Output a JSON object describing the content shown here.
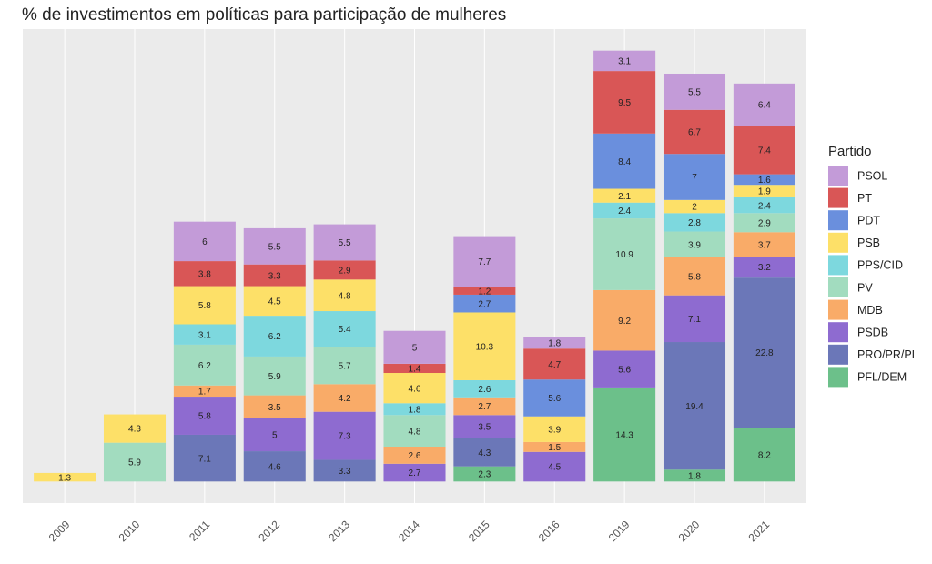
{
  "chart_data": {
    "type": "stacked_bar",
    "title": "% de investimentos em políticas para participação de mulheres",
    "categories": [
      "2009",
      "2010",
      "2011",
      "2012",
      "2013",
      "2014",
      "2015",
      "2016",
      "2019",
      "2020",
      "2021"
    ],
    "legend_title": "Partido",
    "legend_position": "right",
    "grid": true,
    "series": [
      {
        "name": "PSOL",
        "color": "#c39bd8",
        "values": [
          null,
          null,
          6,
          5.5,
          5.5,
          5,
          7.7,
          1.8,
          3.1,
          5.5,
          6.4
        ]
      },
      {
        "name": "PT",
        "color": "#d95656",
        "values": [
          null,
          null,
          3.8,
          3.3,
          2.9,
          1.4,
          1.2,
          4.7,
          9.5,
          6.7,
          7.4
        ]
      },
      {
        "name": "PDT",
        "color": "#6a8fdd",
        "values": [
          null,
          null,
          null,
          null,
          null,
          null,
          2.7,
          5.6,
          8.4,
          7,
          1.6
        ]
      },
      {
        "name": "PSB",
        "color": "#fde068",
        "values": [
          1.3,
          4.3,
          5.8,
          4.5,
          4.8,
          4.6,
          10.3,
          3.9,
          2.1,
          2,
          1.9
        ]
      },
      {
        "name": "PPS/CID",
        "color": "#7dd8de",
        "values": [
          null,
          null,
          3.1,
          6.2,
          5.4,
          1.8,
          2.6,
          null,
          2.4,
          2.8,
          2.4
        ]
      },
      {
        "name": "PV",
        "color": "#a2dcbf",
        "values": [
          null,
          5.9,
          6.2,
          5.9,
          5.7,
          4.8,
          null,
          null,
          10.9,
          3.9,
          2.9
        ]
      },
      {
        "name": "MDB",
        "color": "#f9ab68",
        "values": [
          null,
          null,
          1.7,
          3.5,
          4.2,
          2.6,
          2.7,
          1.5,
          9.2,
          5.8,
          3.7
        ]
      },
      {
        "name": "PSDB",
        "color": "#8e6bd0",
        "values": [
          null,
          null,
          5.8,
          5,
          7.3,
          2.7,
          3.5,
          4.5,
          5.6,
          7.1,
          3.2
        ]
      },
      {
        "name": "PRO/PR/PL",
        "color": "#6b77b8",
        "values": [
          null,
          null,
          7.1,
          4.6,
          3.3,
          null,
          4.3,
          null,
          null,
          19.4,
          22.8
        ]
      },
      {
        "name": "PFL/DEM",
        "color": "#6cc08a",
        "values": [
          null,
          null,
          null,
          null,
          null,
          null,
          2.3,
          null,
          14.3,
          1.8,
          8.2
        ]
      }
    ]
  }
}
